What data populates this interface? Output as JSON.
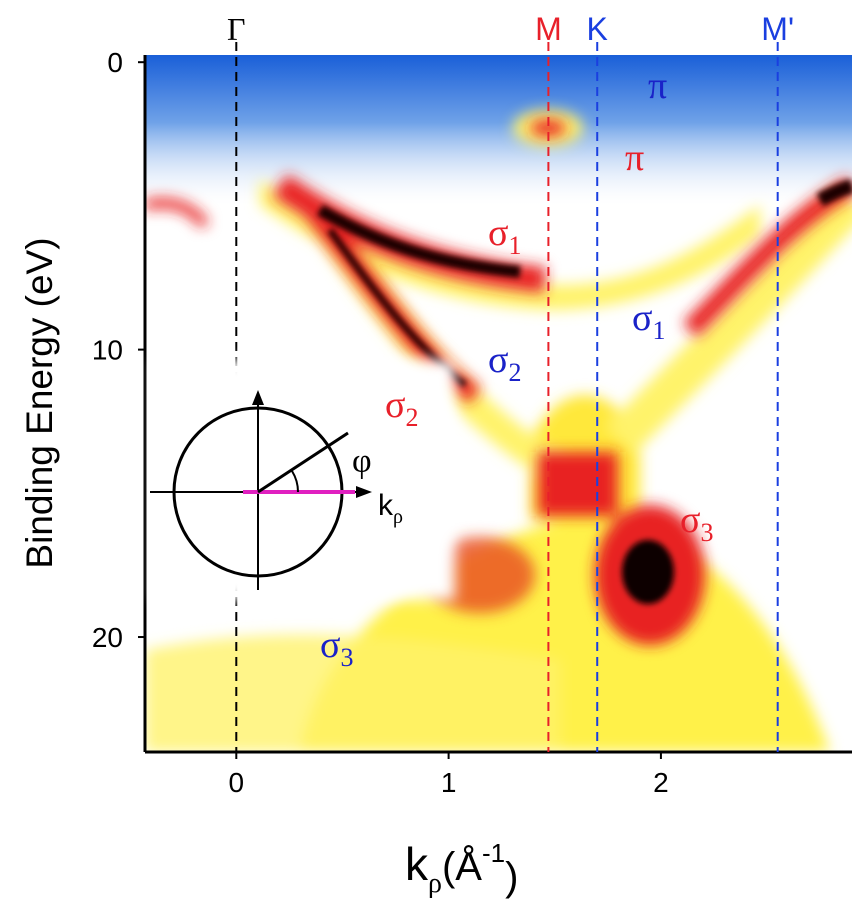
{
  "chart_data": {
    "type": "heatmap",
    "y_label": "Binding Energy (eV)",
    "x_label": {
      "main": "k",
      "sub": "ρ",
      "open": "(Å",
      "sup": "-1",
      "close": ")"
    },
    "xlim": [
      -0.43,
      2.9
    ],
    "ylim": [
      -0.25,
      24
    ],
    "y_inverted": true,
    "xticks": [
      0,
      1,
      2
    ],
    "yticks": [
      0,
      10,
      20
    ],
    "grid": false,
    "reference_lines": [
      {
        "label": "Γ",
        "x": 0,
        "color": "#000000"
      },
      {
        "label": "M",
        "x": 1.47,
        "color": "#e8202a"
      },
      {
        "label": "K",
        "x": 1.7,
        "color": "#1a3fe0"
      },
      {
        "label": "M'",
        "x": 2.55,
        "color": "#1a3fe0"
      }
    ],
    "annotations": [
      {
        "text": "π",
        "color": "#1a22c8"
      },
      {
        "text": "π",
        "color": "#e8202a"
      },
      {
        "text": "σ",
        "sub": "1",
        "color": "#e8202a"
      },
      {
        "text": "σ",
        "sub": "1",
        "color": "#1a22c8"
      },
      {
        "text": "σ",
        "sub": "2",
        "color": "#1a22c8"
      },
      {
        "text": "σ",
        "sub": "2",
        "color": "#e8202a"
      },
      {
        "text": "σ",
        "sub": "3",
        "color": "#e8202a"
      },
      {
        "text": "σ",
        "sub": "3",
        "color": "#1a22c8"
      }
    ],
    "inset": {
      "angle_label": "φ",
      "axis_label": "k",
      "axis_sub": "ρ",
      "axis_color": "#e020c0"
    }
  }
}
